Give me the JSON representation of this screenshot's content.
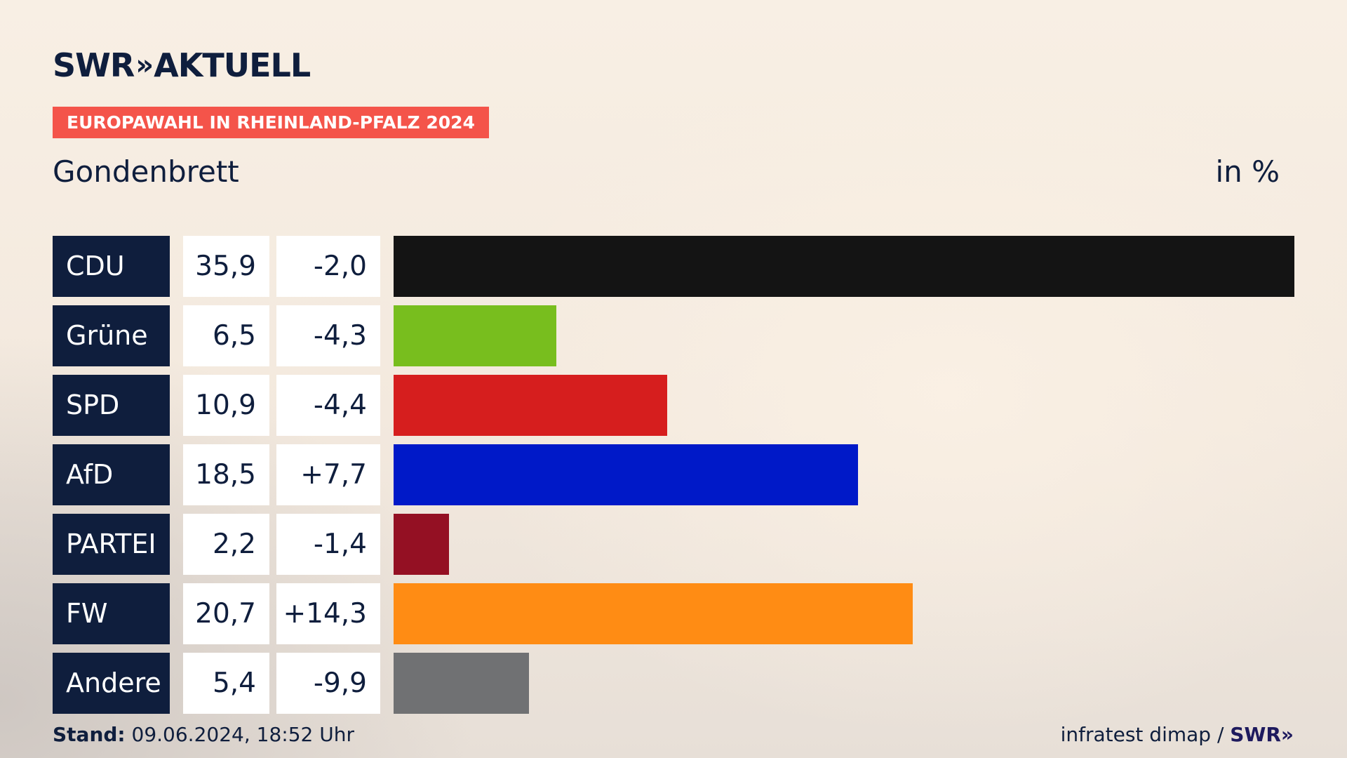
{
  "header": {
    "brand_swr": "SWR",
    "brand_chevrons": "»",
    "brand_aktuell": "AKTUELL",
    "banner": "EUROPAWAHL IN RHEINLAND-PFALZ 2024",
    "region": "Gondenbrett",
    "unit": "in %"
  },
  "colors": {
    "navy": "#0f1e3d",
    "banner": "#f4544a"
  },
  "chart_data": {
    "type": "bar",
    "orientation": "horizontal",
    "title": "Gondenbrett",
    "unit": "in %",
    "categories": [
      "CDU",
      "Grüne",
      "SPD",
      "AfD",
      "PARTEI",
      "FW",
      "Andere"
    ],
    "values": [
      35.9,
      6.5,
      10.9,
      18.5,
      2.2,
      20.7,
      5.4
    ],
    "value_labels": [
      "35,9",
      "6,5",
      "10,9",
      "18,5",
      "2,2",
      "20,7",
      "5,4"
    ],
    "diff_labels": [
      "-2,0",
      "-4,3",
      "-4,4",
      "+7,7",
      "-1,4",
      "+14,3",
      "-9,9"
    ],
    "diffs": [
      -2.0,
      -4.3,
      -4.4,
      7.7,
      -1.4,
      14.3,
      -9.9
    ],
    "colors": [
      "#141414",
      "#78be1e",
      "#d61e1e",
      "#0019c8",
      "#941023",
      "#ff8c14",
      "#707173"
    ],
    "xlim": [
      0,
      35.9
    ],
    "grid": false,
    "legend": "none"
  },
  "footer": {
    "stand_label": "Stand:",
    "stand_value": " 09.06.2024, 18:52 Uhr",
    "source": "infratest dimap / ",
    "source_brand": "SWR»"
  }
}
